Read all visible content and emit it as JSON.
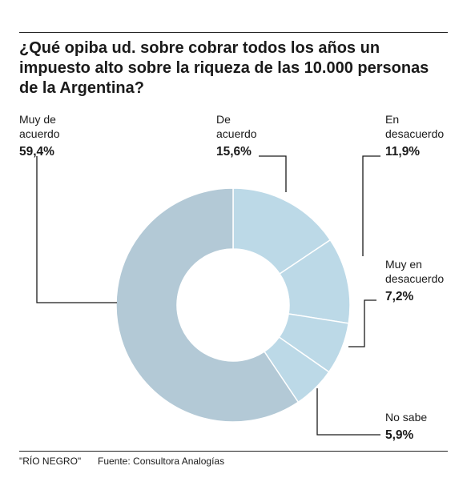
{
  "title": "¿Qué opiba ud. sobre cobrar todos los años un impuesto alto sobre la riqueza de las 10.000 personas de la Argentina?",
  "chart_data": {
    "type": "pie",
    "donut": true,
    "start": "top",
    "direction": "clockwise",
    "slices": [
      {
        "label": "De acuerdo",
        "label_lines": [
          "De",
          "acuerdo"
        ],
        "value": 15.6,
        "display": "15,6%",
        "color": "#bcd9e7"
      },
      {
        "label": "En desacuerdo",
        "label_lines": [
          "En",
          "desacuerdo"
        ],
        "value": 11.9,
        "display": "11,9%",
        "color": "#bcd9e7"
      },
      {
        "label": "Muy en desacuerdo",
        "label_lines": [
          "Muy en",
          "desacuerdo"
        ],
        "value": 7.2,
        "display": "7,2%",
        "color": "#bcd9e7"
      },
      {
        "label": "No sabe",
        "label_lines": [
          "No sabe"
        ],
        "value": 5.9,
        "display": "5,9%",
        "color": "#bcd9e7"
      },
      {
        "label": "Muy de acuerdo",
        "label_lines": [
          "Muy de",
          "acuerdo"
        ],
        "value": 59.4,
        "display": "59,4%",
        "color": "#b3c9d6"
      }
    ],
    "separator_color": "#ffffff",
    "leader_color": "#1a1a1a"
  },
  "footer": {
    "brand": "\"RÍO NEGRO\"",
    "source": "Fuente: Consultora Analogías"
  }
}
